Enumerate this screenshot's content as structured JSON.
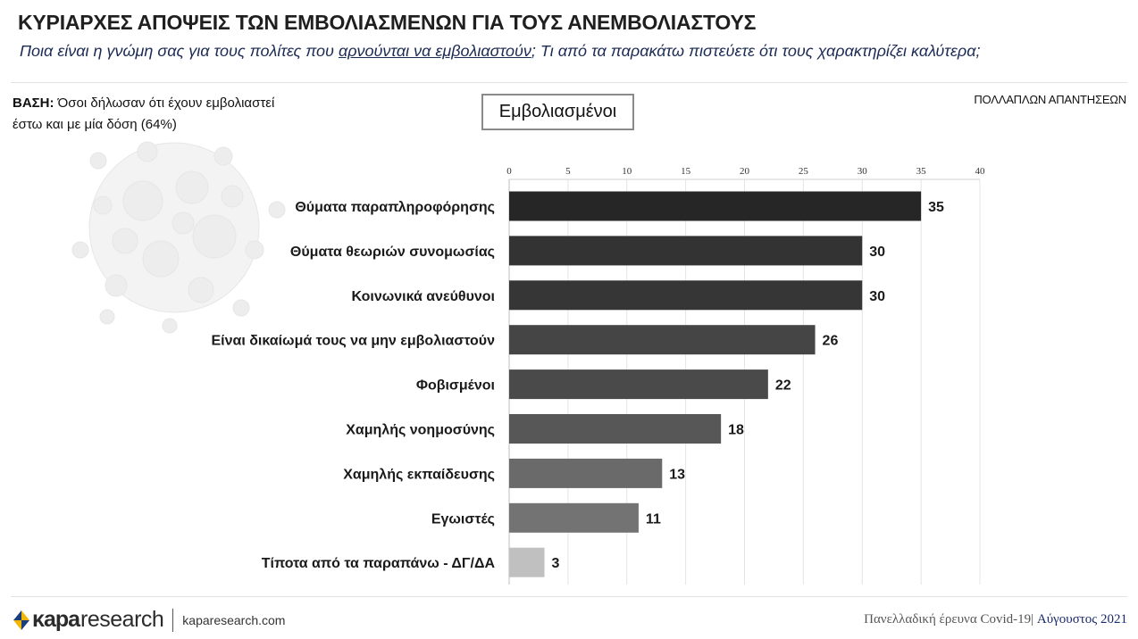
{
  "header": {
    "title": "ΚΥΡΙΑΡΧΕΣ ΑΠΟΨΕΙΣ ΤΩΝ ΕΜΒΟΛΙΑΣΜΕΝΩΝ ΓΙΑ ΤΟΥΣ ΑΝΕΜΒΟΛΙΑΣΤΟΥΣ",
    "subtitle_pre": "Ποια είναι η γνώμη σας για τους πολίτες που ",
    "subtitle_underlined": "αρνούνται να εμβολιαστούν",
    "subtitle_post": "; Τι από τα παρακάτω πιστεύετε ότι τους χαρακτηρίζει καλύτερα;"
  },
  "base": {
    "label": "ΒΑΣΗ:",
    "text": " Όσοι δήλωσαν ότι έχουν εμβολιαστεί έστω και με μία δόση (64%)"
  },
  "group_label": "Εμβολιασμένοι",
  "multiple_answers_note": "ΠΟΛΛΑΠΛΩΝ ΑΠΑΝΤΗΣΕΩΝ",
  "chart_data": {
    "type": "bar",
    "orientation": "horizontal",
    "categories": [
      "Θύματα παραπληροφόρησης",
      "Θύματα θεωριών συνομωσίας",
      "Κοινωνικά ανεύθυνοι",
      "Είναι δικαίωμά τους να μην εμβολιαστούν",
      "Φοβισμένοι",
      "Χαμηλής νοημοσύνης",
      "Χαμηλής εκπαίδευσης",
      "Εγωιστές",
      "Τίποτα από τα παραπάνω - ΔΓ/ΔΑ"
    ],
    "series": [
      {
        "values": [
          35,
          30,
          30,
          26,
          22,
          18,
          13,
          11,
          3
        ]
      }
    ],
    "bar_colors": [
      "#262626",
      "#333333",
      "#363636",
      "#454545",
      "#4a4a4a",
      "#575757",
      "#6a6a6a",
      "#737373",
      "#c0c0c0"
    ],
    "xlim": [
      0,
      40
    ],
    "xticks": [
      0,
      5,
      10,
      15,
      20,
      25,
      30,
      35,
      40
    ],
    "xtick_position": "top",
    "grid": true,
    "data_labels": true
  },
  "footer": {
    "brand_bold": "κapa",
    "brand_light": "research",
    "website": "kaparesearch.com",
    "survey": "Πανελλαδική έρευνα Covid-19| ",
    "month": "Αύγουστος 2021"
  }
}
